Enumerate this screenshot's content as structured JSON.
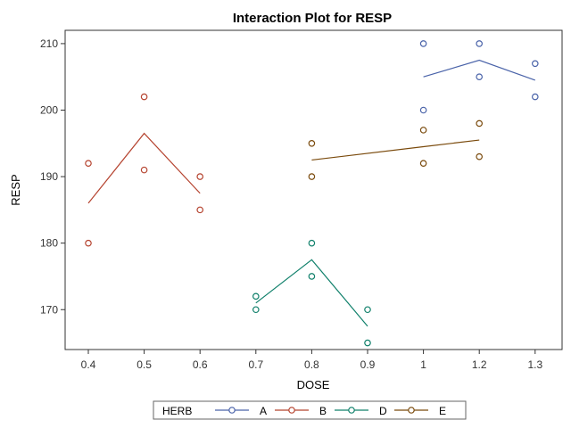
{
  "chart_data": {
    "type": "line",
    "title": "Interaction Plot for RESP",
    "xlabel": "DOSE",
    "ylabel": "RESP",
    "x_categories": [
      "0.4",
      "0.5",
      "0.6",
      "0.7",
      "0.8",
      "0.9",
      "1",
      "1.2",
      "1.3"
    ],
    "y_ticks": [
      170,
      180,
      190,
      200,
      210
    ],
    "ylim": [
      164,
      212
    ],
    "grid": false,
    "legend": {
      "title": "HERB",
      "position": "bottom"
    },
    "series": [
      {
        "name": "A",
        "color": "#4a63a9",
        "points": [
          {
            "x": "1",
            "y": 210
          },
          {
            "x": "1",
            "y": 200
          },
          {
            "x": "1.2",
            "y": 210
          },
          {
            "x": "1.2",
            "y": 205
          },
          {
            "x": "1.3",
            "y": 207
          },
          {
            "x": "1.3",
            "y": 202
          }
        ],
        "line": [
          {
            "x": "1",
            "y": 205
          },
          {
            "x": "1.2",
            "y": 207.5
          },
          {
            "x": "1.3",
            "y": 204.5
          }
        ]
      },
      {
        "name": "B",
        "color": "#b5432f",
        "points": [
          {
            "x": "0.4",
            "y": 192
          },
          {
            "x": "0.4",
            "y": 180
          },
          {
            "x": "0.5",
            "y": 202
          },
          {
            "x": "0.5",
            "y": 191
          },
          {
            "x": "0.6",
            "y": 190
          },
          {
            "x": "0.6",
            "y": 185
          }
        ],
        "line": [
          {
            "x": "0.4",
            "y": 186
          },
          {
            "x": "0.5",
            "y": 196.5
          },
          {
            "x": "0.6",
            "y": 187.5
          }
        ]
      },
      {
        "name": "D",
        "color": "#10806b",
        "points": [
          {
            "x": "0.7",
            "y": 172
          },
          {
            "x": "0.7",
            "y": 170
          },
          {
            "x": "0.8",
            "y": 180
          },
          {
            "x": "0.8",
            "y": 175
          },
          {
            "x": "0.9",
            "y": 170
          },
          {
            "x": "0.9",
            "y": 165
          }
        ],
        "line": [
          {
            "x": "0.7",
            "y": 171
          },
          {
            "x": "0.8",
            "y": 177.5
          },
          {
            "x": "0.9",
            "y": 167.5
          }
        ]
      },
      {
        "name": "E",
        "color": "#7a4a0c",
        "points": [
          {
            "x": "0.8",
            "y": 195
          },
          {
            "x": "0.8",
            "y": 190
          },
          {
            "x": "1",
            "y": 197
          },
          {
            "x": "1",
            "y": 192
          },
          {
            "x": "1.2",
            "y": 198
          },
          {
            "x": "1.2",
            "y": 193
          }
        ],
        "line": [
          {
            "x": "0.8",
            "y": 192.5
          },
          {
            "x": "1",
            "y": 194.5
          },
          {
            "x": "1.2",
            "y": 195.5
          }
        ]
      }
    ]
  }
}
